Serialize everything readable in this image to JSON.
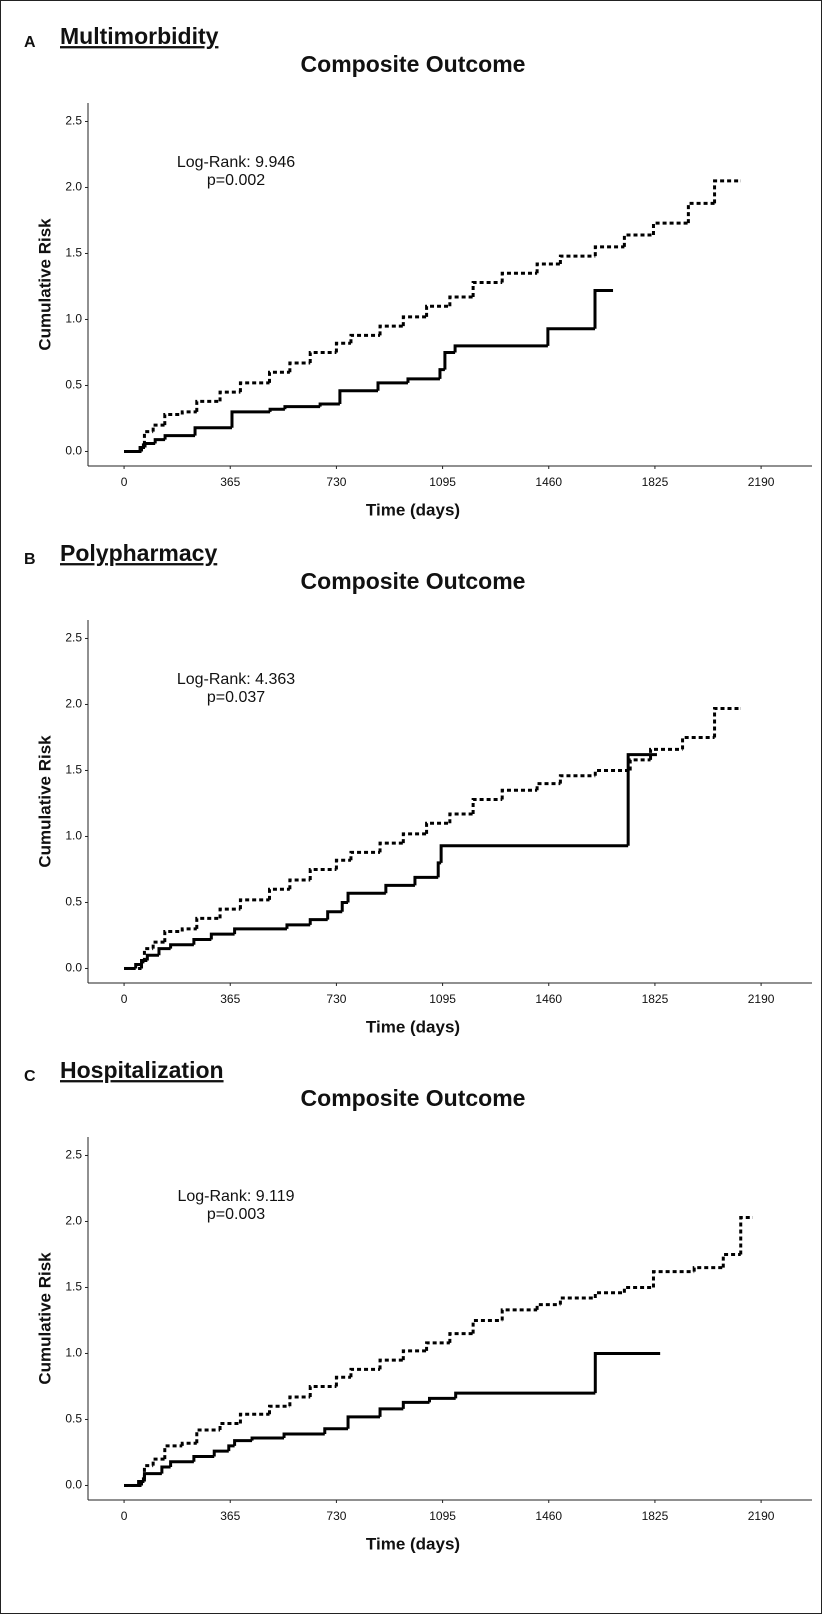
{
  "chart_data": [
    {
      "type": "line",
      "step": "post",
      "panel_label": "A",
      "panel_title": "Multimorbidity",
      "title": "Composite Outcome",
      "xlabel": "Time (days)",
      "ylabel": "Cumulative Risk",
      "annotations": [
        "Log-Rank: 9.946",
        "p=0.002"
      ],
      "xlim": [
        -124,
        2365
      ],
      "ylim": [
        -0.11,
        2.64
      ],
      "xticks": [
        0,
        365,
        730,
        1095,
        1460,
        1825,
        2190
      ],
      "yticks": [
        {
          "value": 0,
          "label": "0.0"
        },
        {
          "value": 0.5,
          "label": "0.5"
        },
        {
          "value": 1,
          "label": "1.0"
        },
        {
          "value": 1.5,
          "label": "1.5"
        },
        {
          "value": 2,
          "label": "2.0"
        },
        {
          "value": 2.5,
          "label": "2.5"
        }
      ],
      "series": [
        {
          "color": "#000000",
          "linestyle": "solid",
          "x": [
            0,
            55,
            72,
            107,
            141,
            244,
            371,
            502,
            553,
            674,
            742,
            873,
            976,
            1086,
            1103,
            1138,
            1457,
            1619,
            1681
          ],
          "values": [
            0,
            0.03,
            0.06,
            0.09,
            0.12,
            0.18,
            0.3,
            0.32,
            0.34,
            0.36,
            0.46,
            0.52,
            0.55,
            0.62,
            0.75,
            0.8,
            0.93,
            1.22,
            1.22
          ]
        },
        {
          "color": "#000000",
          "linestyle": "dashed",
          "x": [
            0,
            60,
            70,
            100,
            140,
            200,
            250,
            330,
            400,
            500,
            570,
            640,
            730,
            780,
            880,
            960,
            1040,
            1120,
            1200,
            1300,
            1420,
            1500,
            1620,
            1720,
            1820,
            1940,
            2030,
            2118
          ],
          "values": [
            0,
            0.05,
            0.15,
            0.2,
            0.28,
            0.3,
            0.38,
            0.45,
            0.52,
            0.6,
            0.67,
            0.75,
            0.82,
            0.88,
            0.95,
            1.02,
            1.1,
            1.17,
            1.28,
            1.35,
            1.42,
            1.48,
            1.55,
            1.64,
            1.73,
            1.88,
            2.05,
            2.05
          ]
        }
      ]
    },
    {
      "type": "line",
      "step": "post",
      "panel_label": "B",
      "panel_title": "Polypharmacy",
      "title": "Composite Outcome",
      "xlabel": "Time (days)",
      "ylabel": "Cumulative Risk",
      "annotations": [
        "Log-Rank: 4.363",
        "p=0.037"
      ],
      "xlim": [
        -124,
        2365
      ],
      "ylim": [
        -0.11,
        2.64
      ],
      "xticks": [
        0,
        365,
        730,
        1095,
        1460,
        1825,
        2190
      ],
      "yticks": [
        {
          "value": 0,
          "label": "0.0"
        },
        {
          "value": 0.5,
          "label": "0.5"
        },
        {
          "value": 1,
          "label": "1.0"
        },
        {
          "value": 1.5,
          "label": "1.5"
        },
        {
          "value": 2,
          "label": "2.0"
        },
        {
          "value": 2.5,
          "label": "2.5"
        }
      ],
      "series": [
        {
          "color": "#000000",
          "linestyle": "solid",
          "x": [
            0,
            40,
            60,
            80,
            120,
            160,
            240,
            300,
            380,
            560,
            640,
            700,
            750,
            770,
            900,
            1000,
            1080,
            1090,
            1733,
            1832
          ],
          "values": [
            0,
            0.03,
            0.06,
            0.1,
            0.15,
            0.18,
            0.22,
            0.26,
            0.3,
            0.33,
            0.37,
            0.43,
            0.5,
            0.57,
            0.63,
            0.69,
            0.8,
            0.93,
            1.62,
            1.62
          ]
        },
        {
          "color": "#000000",
          "linestyle": "dashed",
          "x": [
            0,
            60,
            70,
            100,
            140,
            200,
            250,
            330,
            400,
            500,
            570,
            640,
            730,
            780,
            880,
            960,
            1040,
            1120,
            1200,
            1300,
            1420,
            1500,
            1620,
            1740,
            1810,
            1920,
            2030,
            2118
          ],
          "values": [
            0,
            0.05,
            0.15,
            0.2,
            0.28,
            0.3,
            0.38,
            0.45,
            0.52,
            0.6,
            0.67,
            0.75,
            0.82,
            0.88,
            0.95,
            1.02,
            1.1,
            1.17,
            1.28,
            1.35,
            1.4,
            1.46,
            1.5,
            1.58,
            1.66,
            1.75,
            1.97,
            1.97
          ]
        }
      ]
    },
    {
      "type": "line",
      "step": "post",
      "panel_label": "C",
      "panel_title": "Hospitalization",
      "title": "Composite Outcome",
      "xlabel": "Time (days)",
      "ylabel": "Cumulative Risk",
      "annotations": [
        "Log-Rank: 9.119",
        "p=0.003"
      ],
      "xlim": [
        -124,
        2365
      ],
      "ylim": [
        -0.11,
        2.64
      ],
      "xticks": [
        0,
        365,
        730,
        1095,
        1460,
        1825,
        2190
      ],
      "yticks": [
        {
          "value": 0,
          "label": "0.0"
        },
        {
          "value": 0.5,
          "label": "0.5"
        },
        {
          "value": 1,
          "label": "1.0"
        },
        {
          "value": 1.5,
          "label": "1.5"
        },
        {
          "value": 2,
          "label": "2.0"
        },
        {
          "value": 2.5,
          "label": "2.5"
        }
      ],
      "series": [
        {
          "color": "#000000",
          "linestyle": "solid",
          "x": [
            0,
            50,
            70,
            130,
            160,
            240,
            310,
            360,
            380,
            440,
            550,
            690,
            770,
            880,
            960,
            1050,
            1140,
            1620,
            1843
          ],
          "values": [
            0,
            0.03,
            0.09,
            0.14,
            0.18,
            0.22,
            0.26,
            0.3,
            0.34,
            0.36,
            0.39,
            0.43,
            0.52,
            0.58,
            0.63,
            0.66,
            0.7,
            1.0,
            1.0
          ]
        },
        {
          "color": "#000000",
          "linestyle": "dashed",
          "x": [
            0,
            60,
            70,
            100,
            140,
            200,
            250,
            330,
            400,
            500,
            570,
            640,
            730,
            780,
            880,
            960,
            1040,
            1120,
            1200,
            1300,
            1420,
            1500,
            1620,
            1720,
            1820,
            1960,
            2060,
            2120,
            2160
          ],
          "values": [
            0,
            0.05,
            0.15,
            0.2,
            0.3,
            0.32,
            0.42,
            0.47,
            0.54,
            0.6,
            0.67,
            0.75,
            0.82,
            0.88,
            0.95,
            1.02,
            1.08,
            1.15,
            1.25,
            1.33,
            1.37,
            1.42,
            1.46,
            1.5,
            1.62,
            1.65,
            1.75,
            2.03,
            2.03
          ]
        }
      ]
    }
  ]
}
